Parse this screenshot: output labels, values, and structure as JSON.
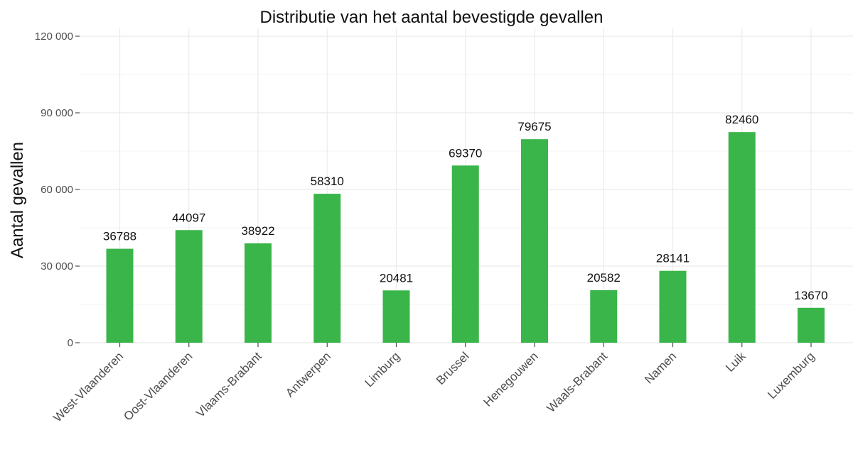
{
  "chart_data": {
    "type": "bar",
    "title": "Distributie van het aantal bevestigde gevallen",
    "xlabel": "",
    "ylabel": "Aantal gevallen",
    "categories": [
      "West-Vlaanderen",
      "Oost-Vlaanderen",
      "Vlaams-Brabant",
      "Antwerpen",
      "Limburg",
      "Brussel",
      "Henegouwen",
      "Waals-Brabant",
      "Namen",
      "Luik",
      "Luxemburg"
    ],
    "values": [
      36788,
      44097,
      38922,
      58310,
      20481,
      69370,
      79675,
      20582,
      28141,
      82460,
      13670
    ],
    "value_labels": [
      "36788",
      "44097",
      "38922",
      "58310",
      "20481",
      "69370",
      "79675",
      "20582",
      "28141",
      "82460",
      "13670"
    ],
    "ylim": [
      0,
      120000
    ],
    "yticks": [
      0,
      30000,
      60000,
      90000,
      120000
    ],
    "ytick_labels": [
      "0",
      "30 000",
      "60 000",
      "90 000",
      "120 000"
    ],
    "grid": true,
    "legend": "none",
    "bar_color": "#3ab54a"
  }
}
